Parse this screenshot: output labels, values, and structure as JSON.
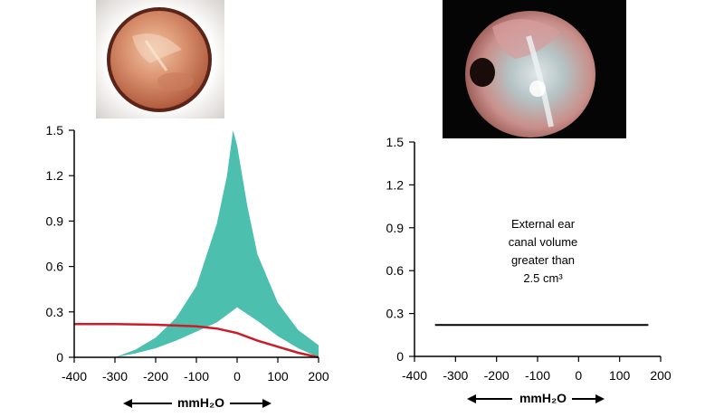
{
  "images": [
    {
      "name": "otoscope-image-1",
      "description_icon": "eardrum-image"
    },
    {
      "name": "otoscope-image-2",
      "description_icon": "perforated-eardrum-image"
    }
  ],
  "chart_data": [
    {
      "type": "area",
      "xlim": [
        -400,
        200
      ],
      "ylim": [
        0,
        1.5
      ],
      "x_ticks": [
        "-400",
        "-300",
        "-200",
        "-100",
        "0",
        "100",
        "200"
      ],
      "y_ticks": [
        "0",
        "0.3",
        "0.6",
        "0.9",
        "1.2",
        "1.5"
      ],
      "xlabel": "mmH₂O",
      "grid": false,
      "colors": {
        "band": "#4dbfae",
        "line": "#c81e28"
      },
      "band_upper": [
        {
          "x": -300,
          "y": 0
        },
        {
          "x": -250,
          "y": 0.05
        },
        {
          "x": -200,
          "y": 0.13
        },
        {
          "x": -150,
          "y": 0.26
        },
        {
          "x": -100,
          "y": 0.47
        },
        {
          "x": -50,
          "y": 0.88
        },
        {
          "x": -25,
          "y": 1.2
        },
        {
          "x": -10,
          "y": 1.5
        },
        {
          "x": 0,
          "y": 1.4
        },
        {
          "x": 25,
          "y": 1.0
        },
        {
          "x": 50,
          "y": 0.68
        },
        {
          "x": 100,
          "y": 0.36
        },
        {
          "x": 150,
          "y": 0.18
        },
        {
          "x": 200,
          "y": 0.08
        }
      ],
      "band_lower": [
        {
          "x": 200,
          "y": 0
        },
        {
          "x": 150,
          "y": 0.06
        },
        {
          "x": 100,
          "y": 0.14
        },
        {
          "x": 50,
          "y": 0.24
        },
        {
          "x": 0,
          "y": 0.33
        },
        {
          "x": -25,
          "y": 0.28
        },
        {
          "x": -50,
          "y": 0.23
        },
        {
          "x": -100,
          "y": 0.17
        },
        {
          "x": -150,
          "y": 0.11
        },
        {
          "x": -200,
          "y": 0.06
        },
        {
          "x": -250,
          "y": 0.025
        },
        {
          "x": -300,
          "y": 0
        }
      ],
      "series": [
        {
          "x": [
            -400,
            -300,
            -200,
            -150,
            -100,
            -50,
            0,
            50,
            100,
            150,
            200
          ],
          "y": [
            0.22,
            0.22,
            0.215,
            0.21,
            0.205,
            0.19,
            0.16,
            0.11,
            0.07,
            0.03,
            0.0
          ]
        }
      ]
    },
    {
      "type": "line",
      "xlim": [
        -400,
        200
      ],
      "ylim": [
        0,
        1.5
      ],
      "x_ticks": [
        "-400",
        "-300",
        "-200",
        "-100",
        "0",
        "100",
        "200"
      ],
      "y_ticks": [
        "0",
        "0.3",
        "0.6",
        "0.9",
        "1.2",
        "1.5"
      ],
      "xlabel": "mmH₂O",
      "grid": false,
      "annotation": [
        "External ear",
        "canal volume",
        "greater than",
        "2.5 cm³"
      ],
      "series": [
        {
          "x": [
            -350,
            170
          ],
          "y": [
            0.22,
            0.22
          ]
        }
      ]
    }
  ]
}
